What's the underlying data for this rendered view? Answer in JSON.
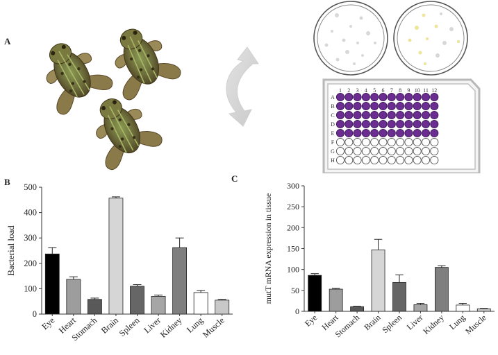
{
  "panels": {
    "a_label": "A",
    "b_label": "B",
    "c_label": "C"
  },
  "plate": {
    "columns": [
      "1",
      "2",
      "3",
      "4",
      "5",
      "6",
      "7",
      "8",
      "9",
      "10",
      "11",
      "12"
    ],
    "rows": [
      "A",
      "B",
      "C",
      "D",
      "E",
      "F",
      "G",
      "H"
    ],
    "filled_rows": 5,
    "fill_color": "#6b2d91",
    "empty_color": "#ffffff"
  },
  "colors": {
    "Eye": "#000000",
    "Heart": "#9d9d9d",
    "Stomach": "#595959",
    "Brain": "#d6d6d6",
    "Spleen": "#666666",
    "Liver": "#a6a6a6",
    "Kidney": "#7f7f7f",
    "Lung": "#ffffff",
    "Muscle": "#c8c8c8",
    "dish_colony": "#d8d8d8",
    "dish_colony_yellow": "#ece59a"
  },
  "chart_data": [
    {
      "type": "bar",
      "categories": [
        "Eye",
        "Heart",
        "Stomach",
        "Brain",
        "Spleen",
        "Liver",
        "Kidney",
        "Lung",
        "Muscle"
      ],
      "values": [
        237,
        137,
        58,
        457,
        110,
        70,
        262,
        85,
        55
      ],
      "errors": [
        25,
        10,
        5,
        5,
        6,
        5,
        38,
        8,
        3
      ],
      "ylabel": "Bacterial load",
      "ylim": [
        0,
        500
      ],
      "yticks": [
        "0",
        "100",
        "200",
        "300",
        "400",
        "500"
      ]
    },
    {
      "type": "bar",
      "categories": [
        "Eye",
        "Heart",
        "Stomach",
        "Brain",
        "Spleen",
        "Liver",
        "Kidney",
        "Lung",
        "Muscle"
      ],
      "values": [
        86,
        53,
        11,
        147,
        69,
        16,
        105,
        15,
        6
      ],
      "errors": [
        4,
        2,
        1,
        25,
        18,
        3,
        4,
        4,
        1
      ],
      "ylabel": "mutT mRNA expression in tissue",
      "ylim": [
        0,
        300
      ],
      "yticks": [
        "0",
        "50",
        "100",
        "150",
        "200",
        "250",
        "300"
      ]
    }
  ]
}
